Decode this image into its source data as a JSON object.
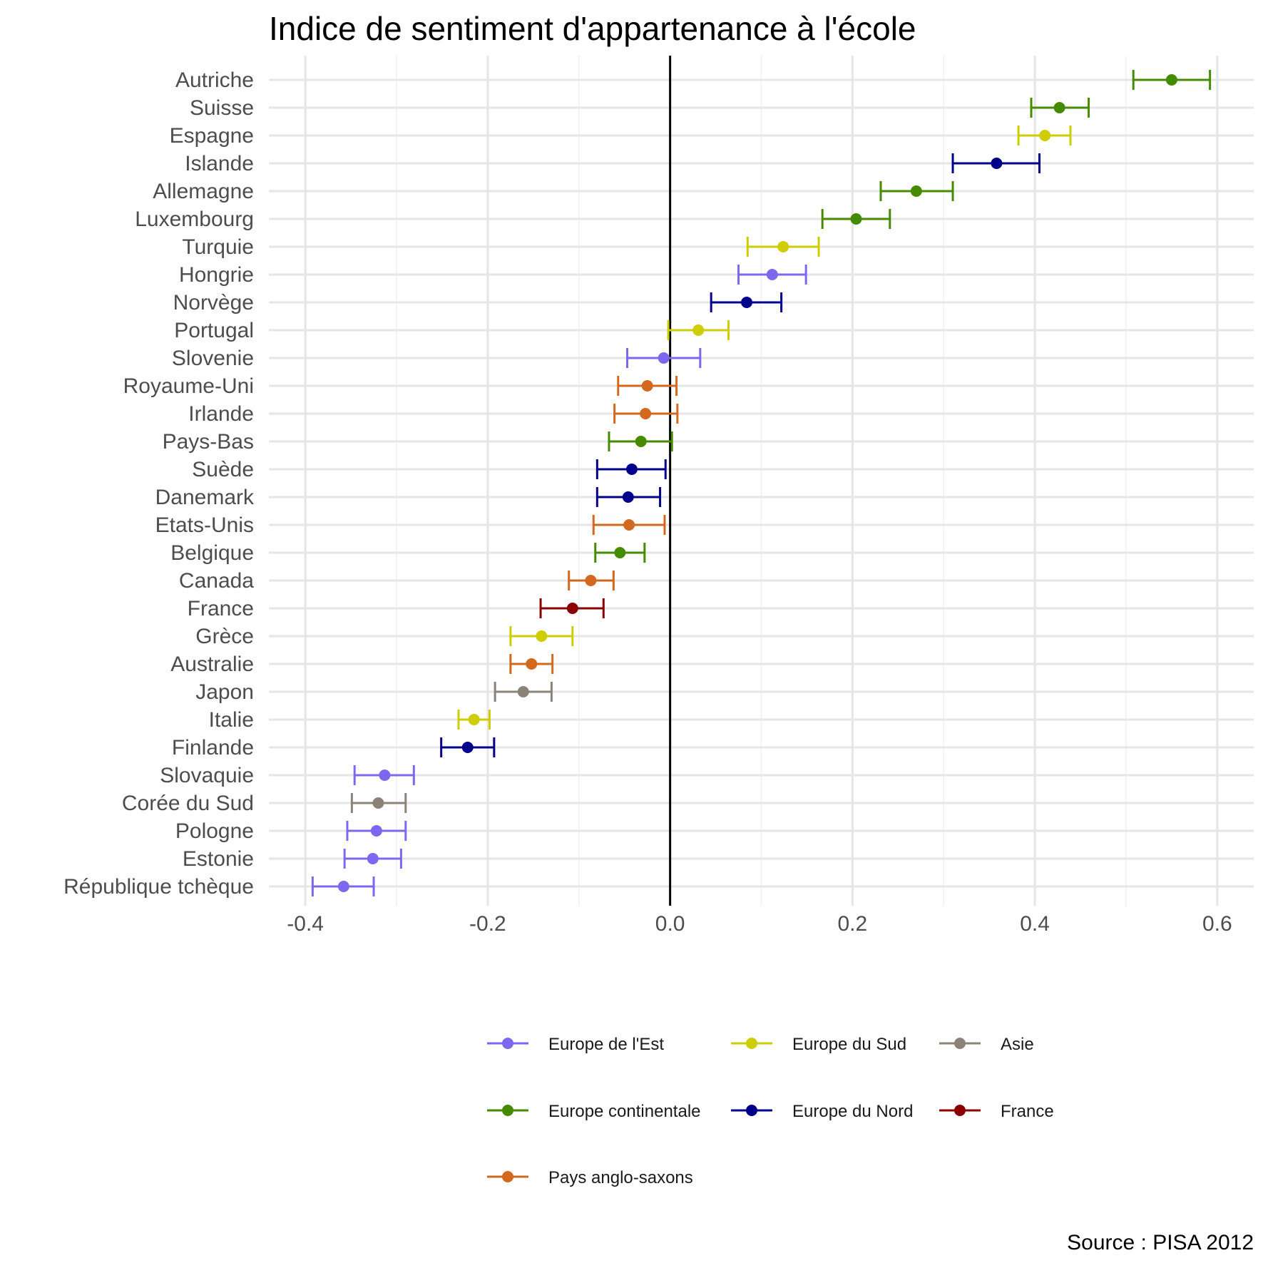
{
  "chart_data": {
    "type": "dot-errorbar",
    "title": "Indice de sentiment d'appartenance à l'école",
    "xlim": [
      -0.44,
      0.64
    ],
    "x_ticks": [
      -0.4,
      -0.2,
      0.0,
      0.2,
      0.4,
      0.6
    ],
    "x_tick_labels": [
      "-0.4",
      "-0.2",
      "0.0",
      "0.2",
      "0.4",
      "0.6"
    ],
    "reference_line": 0.0,
    "grid": true,
    "groups": [
      {
        "name": "Europe de l'Est",
        "color": "#7B68EE"
      },
      {
        "name": "Europe du Sud",
        "color": "#CDCD00"
      },
      {
        "name": "Asie",
        "color": "#8B8378"
      },
      {
        "name": "Europe continentale",
        "color": "#458B00"
      },
      {
        "name": "Europe du Nord",
        "color": "#00008B"
      },
      {
        "name": "France",
        "color": "#8B0000"
      },
      {
        "name": "Pays anglo-saxons",
        "color": "#D2691E"
      }
    ],
    "points": [
      {
        "country": "Autriche",
        "group": "Europe continentale",
        "value": 0.55,
        "low": 0.508,
        "high": 0.592
      },
      {
        "country": "Suisse",
        "group": "Europe continentale",
        "value": 0.427,
        "low": 0.396,
        "high": 0.459
      },
      {
        "country": "Espagne",
        "group": "Europe du Sud",
        "value": 0.411,
        "low": 0.382,
        "high": 0.439
      },
      {
        "country": "Islande",
        "group": "Europe du Nord",
        "value": 0.358,
        "low": 0.31,
        "high": 0.405
      },
      {
        "country": "Allemagne",
        "group": "Europe continentale",
        "value": 0.27,
        "low": 0.231,
        "high": 0.31
      },
      {
        "country": "Luxembourg",
        "group": "Europe continentale",
        "value": 0.204,
        "low": 0.167,
        "high": 0.241
      },
      {
        "country": "Turquie",
        "group": "Europe du Sud",
        "value": 0.124,
        "low": 0.085,
        "high": 0.163
      },
      {
        "country": "Hongrie",
        "group": "Europe de l'Est",
        "value": 0.112,
        "low": 0.075,
        "high": 0.149
      },
      {
        "country": "Norvège",
        "group": "Europe du Nord",
        "value": 0.084,
        "low": 0.045,
        "high": 0.122
      },
      {
        "country": "Portugal",
        "group": "Europe du Sud",
        "value": 0.031,
        "low": -0.002,
        "high": 0.064
      },
      {
        "country": "Slovenie",
        "group": "Europe de l'Est",
        "value": -0.007,
        "low": -0.047,
        "high": 0.033
      },
      {
        "country": "Royaume-Uni",
        "group": "Pays anglo-saxons",
        "value": -0.025,
        "low": -0.057,
        "high": 0.007
      },
      {
        "country": "Irlande",
        "group": "Pays anglo-saxons",
        "value": -0.027,
        "low": -0.061,
        "high": 0.008
      },
      {
        "country": "Pays-Bas",
        "group": "Europe continentale",
        "value": -0.032,
        "low": -0.067,
        "high": 0.002
      },
      {
        "country": "Suède",
        "group": "Europe du Nord",
        "value": -0.042,
        "low": -0.08,
        "high": -0.005
      },
      {
        "country": "Danemark",
        "group": "Europe du Nord",
        "value": -0.046,
        "low": -0.08,
        "high": -0.011
      },
      {
        "country": "Etats-Unis",
        "group": "Pays anglo-saxons",
        "value": -0.045,
        "low": -0.084,
        "high": -0.006
      },
      {
        "country": "Belgique",
        "group": "Europe continentale",
        "value": -0.055,
        "low": -0.082,
        "high": -0.028
      },
      {
        "country": "Canada",
        "group": "Pays anglo-saxons",
        "value": -0.087,
        "low": -0.111,
        "high": -0.062
      },
      {
        "country": "France",
        "group": "France",
        "value": -0.107,
        "low": -0.142,
        "high": -0.073
      },
      {
        "country": "Grèce",
        "group": "Europe du Sud",
        "value": -0.141,
        "low": -0.175,
        "high": -0.107
      },
      {
        "country": "Australie",
        "group": "Pays anglo-saxons",
        "value": -0.152,
        "low": -0.175,
        "high": -0.129
      },
      {
        "country": "Japon",
        "group": "Asie",
        "value": -0.161,
        "low": -0.192,
        "high": -0.13
      },
      {
        "country": "Italie",
        "group": "Europe du Sud",
        "value": -0.215,
        "low": -0.232,
        "high": -0.198
      },
      {
        "country": "Finlande",
        "group": "Europe du Nord",
        "value": -0.222,
        "low": -0.251,
        "high": -0.193
      },
      {
        "country": "Slovaquie",
        "group": "Europe de l'Est",
        "value": -0.313,
        "low": -0.346,
        "high": -0.281
      },
      {
        "country": "Corée du Sud",
        "group": "Asie",
        "value": -0.32,
        "low": -0.349,
        "high": -0.29
      },
      {
        "country": "Pologne",
        "group": "Europe de l'Est",
        "value": -0.322,
        "low": -0.354,
        "high": -0.29
      },
      {
        "country": "Estonie",
        "group": "Europe de l'Est",
        "value": -0.326,
        "low": -0.357,
        "high": -0.295
      },
      {
        "country": "République tchèque",
        "group": "Europe de l'Est",
        "value": -0.358,
        "low": -0.392,
        "high": -0.325
      }
    ],
    "source": "Source : PISA 2012"
  }
}
